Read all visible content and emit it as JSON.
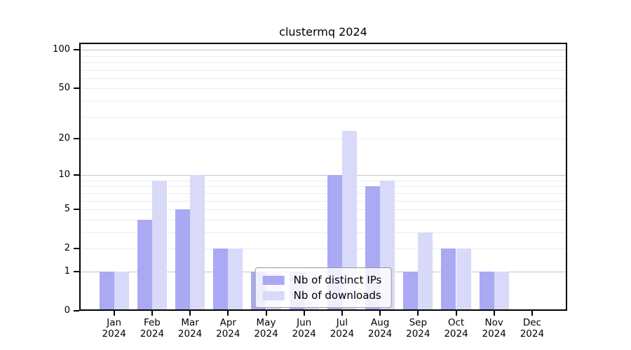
{
  "chart_data": {
    "type": "bar",
    "title": "clustermq 2024",
    "categories": [
      "Jan",
      "Feb",
      "Mar",
      "Apr",
      "May",
      "Jun",
      "Jul",
      "Aug",
      "Sep",
      "Oct",
      "Nov",
      "Dec"
    ],
    "year_label": "2024",
    "series": [
      {
        "name": "Nb of distinct IPs",
        "color": "#a9a9f4",
        "values": [
          1,
          4,
          5,
          2,
          1,
          1,
          10,
          8,
          1,
          2,
          1,
          0
        ]
      },
      {
        "name": "Nb of downloads",
        "color": "#d9d9f9",
        "values": [
          1,
          9,
          10,
          2,
          1,
          1,
          23,
          9,
          3,
          2,
          1,
          0
        ]
      }
    ],
    "y_axis": {
      "scale": "log1p",
      "ticks": [
        0,
        1,
        2,
        5,
        10,
        20,
        50,
        100
      ],
      "tick_labels": [
        "0",
        "1",
        "2",
        "5",
        "10",
        "20",
        "50",
        "100"
      ],
      "minor_gridlines": [
        2,
        3,
        4,
        5,
        6,
        7,
        8,
        9,
        20,
        30,
        40,
        50,
        60,
        70,
        80,
        90
      ],
      "major_gridlines": [
        1,
        10,
        100
      ],
      "ylim": [
        0,
        113
      ]
    },
    "x_axis": {
      "gridlines": false
    },
    "legend": {
      "position": "bottom-center"
    },
    "colors": {
      "minor_grid": "#ececec",
      "major_grid": "#c6c6c6",
      "axis": "#000000",
      "background": "#ffffff",
      "legend_border": "#9a9a9a"
    }
  }
}
